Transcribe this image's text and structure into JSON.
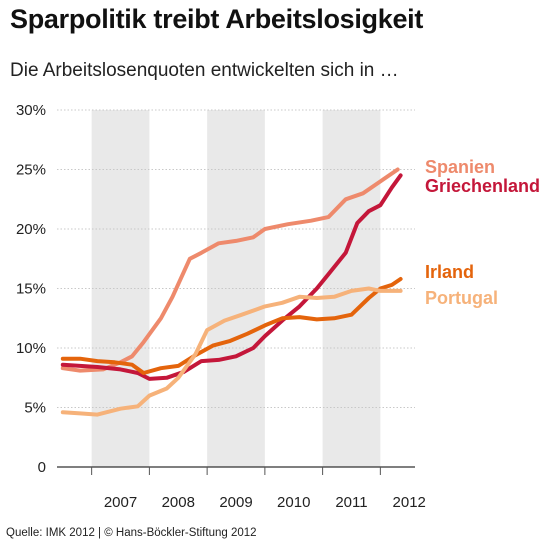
{
  "title": "Sparpolitik treibt Arbeitslosigkeit",
  "subtitle": "Die Arbeitslosenquoten entwickelten sich in …",
  "source": "Quelle: IMK 2012 | © Hans-Böckler-Stiftung 2012",
  "colors": {
    "Spanien": "#ee8a6c",
    "Griechenland": "#c4173a",
    "Irland": "#e4640c",
    "Portugal": "#f6b27a",
    "shade": "#e9e9e9",
    "grid": "#c8c8c8"
  },
  "chart_data": {
    "type": "line",
    "ylim": [
      0,
      30
    ],
    "xlim": [
      2006.4,
      2012.6
    ],
    "yticks": [
      {
        "value": 0,
        "label": "0"
      },
      {
        "value": 5,
        "label": "5%"
      },
      {
        "value": 10,
        "label": "10%"
      },
      {
        "value": 15,
        "label": "15%"
      },
      {
        "value": 20,
        "label": "20%"
      },
      {
        "value": 25,
        "label": "25%"
      },
      {
        "value": 30,
        "label": "30%"
      }
    ],
    "xticks": [
      {
        "value": 2007,
        "label": "2007"
      },
      {
        "value": 2008,
        "label": "2008"
      },
      {
        "value": 2009,
        "label": "2009"
      },
      {
        "value": 2010,
        "label": "2010"
      },
      {
        "value": 2011,
        "label": "2011"
      },
      {
        "value": 2012,
        "label": "2012"
      }
    ],
    "shaded_years": [
      2007,
      2009,
      2011
    ],
    "grid": "horizontal-dotted",
    "legend_placement": "right",
    "series": [
      {
        "name": "Spanien",
        "points": [
          [
            2006.5,
            8.3
          ],
          [
            2006.8,
            8.1
          ],
          [
            2007.2,
            8.2
          ],
          [
            2007.5,
            8.8
          ],
          [
            2007.7,
            9.3
          ],
          [
            2007.9,
            10.5
          ],
          [
            2008.2,
            12.5
          ],
          [
            2008.4,
            14.3
          ],
          [
            2008.7,
            17.5
          ],
          [
            2008.9,
            18.0
          ],
          [
            2009.2,
            18.8
          ],
          [
            2009.5,
            19.0
          ],
          [
            2009.8,
            19.3
          ],
          [
            2010.0,
            20.0
          ],
          [
            2010.4,
            20.4
          ],
          [
            2010.8,
            20.7
          ],
          [
            2011.1,
            21.0
          ],
          [
            2011.4,
            22.5
          ],
          [
            2011.7,
            23.0
          ],
          [
            2012.0,
            24.0
          ],
          [
            2012.3,
            25.0
          ]
        ]
      },
      {
        "name": "Griechenland",
        "points": [
          [
            2006.5,
            8.6
          ],
          [
            2006.8,
            8.5
          ],
          [
            2007.1,
            8.4
          ],
          [
            2007.5,
            8.2
          ],
          [
            2007.8,
            7.9
          ],
          [
            2008.0,
            7.4
          ],
          [
            2008.3,
            7.5
          ],
          [
            2008.6,
            8.0
          ],
          [
            2008.9,
            8.9
          ],
          [
            2009.2,
            9.0
          ],
          [
            2009.5,
            9.3
          ],
          [
            2009.8,
            10.0
          ],
          [
            2010.0,
            11.0
          ],
          [
            2010.3,
            12.3
          ],
          [
            2010.6,
            13.5
          ],
          [
            2010.9,
            15.0
          ],
          [
            2011.1,
            16.2
          ],
          [
            2011.4,
            18.0
          ],
          [
            2011.6,
            20.5
          ],
          [
            2011.8,
            21.5
          ],
          [
            2012.0,
            22.0
          ],
          [
            2012.2,
            23.5
          ],
          [
            2012.35,
            24.5
          ]
        ]
      },
      {
        "name": "Irland",
        "points": [
          [
            2006.5,
            9.1
          ],
          [
            2006.8,
            9.1
          ],
          [
            2007.1,
            8.9
          ],
          [
            2007.4,
            8.8
          ],
          [
            2007.7,
            8.6
          ],
          [
            2007.9,
            7.9
          ],
          [
            2008.2,
            8.3
          ],
          [
            2008.5,
            8.5
          ],
          [
            2008.8,
            9.4
          ],
          [
            2009.1,
            10.2
          ],
          [
            2009.4,
            10.6
          ],
          [
            2009.7,
            11.2
          ],
          [
            2010.0,
            11.9
          ],
          [
            2010.3,
            12.5
          ],
          [
            2010.6,
            12.6
          ],
          [
            2010.9,
            12.4
          ],
          [
            2011.2,
            12.5
          ],
          [
            2011.5,
            12.8
          ],
          [
            2011.8,
            14.2
          ],
          [
            2012.0,
            15.0
          ],
          [
            2012.2,
            15.3
          ],
          [
            2012.35,
            15.8
          ]
        ]
      },
      {
        "name": "Portugal",
        "points": [
          [
            2006.5,
            4.6
          ],
          [
            2006.8,
            4.5
          ],
          [
            2007.1,
            4.4
          ],
          [
            2007.5,
            4.9
          ],
          [
            2007.8,
            5.1
          ],
          [
            2008.0,
            6.0
          ],
          [
            2008.3,
            6.6
          ],
          [
            2008.5,
            7.5
          ],
          [
            2008.8,
            9.5
          ],
          [
            2009.0,
            11.5
          ],
          [
            2009.3,
            12.3
          ],
          [
            2009.6,
            12.8
          ],
          [
            2010.0,
            13.5
          ],
          [
            2010.3,
            13.8
          ],
          [
            2010.6,
            14.3
          ],
          [
            2010.9,
            14.2
          ],
          [
            2011.2,
            14.3
          ],
          [
            2011.5,
            14.8
          ],
          [
            2011.8,
            15.0
          ],
          [
            2012.0,
            14.8
          ],
          [
            2012.35,
            14.8
          ]
        ]
      }
    ],
    "legend": [
      {
        "series": "Spanien",
        "y": 25.2
      },
      {
        "series": "Griechenland",
        "y": 23.6
      },
      {
        "series": "Irland",
        "y": 16.4
      },
      {
        "series": "Portugal",
        "y": 14.2
      }
    ]
  }
}
